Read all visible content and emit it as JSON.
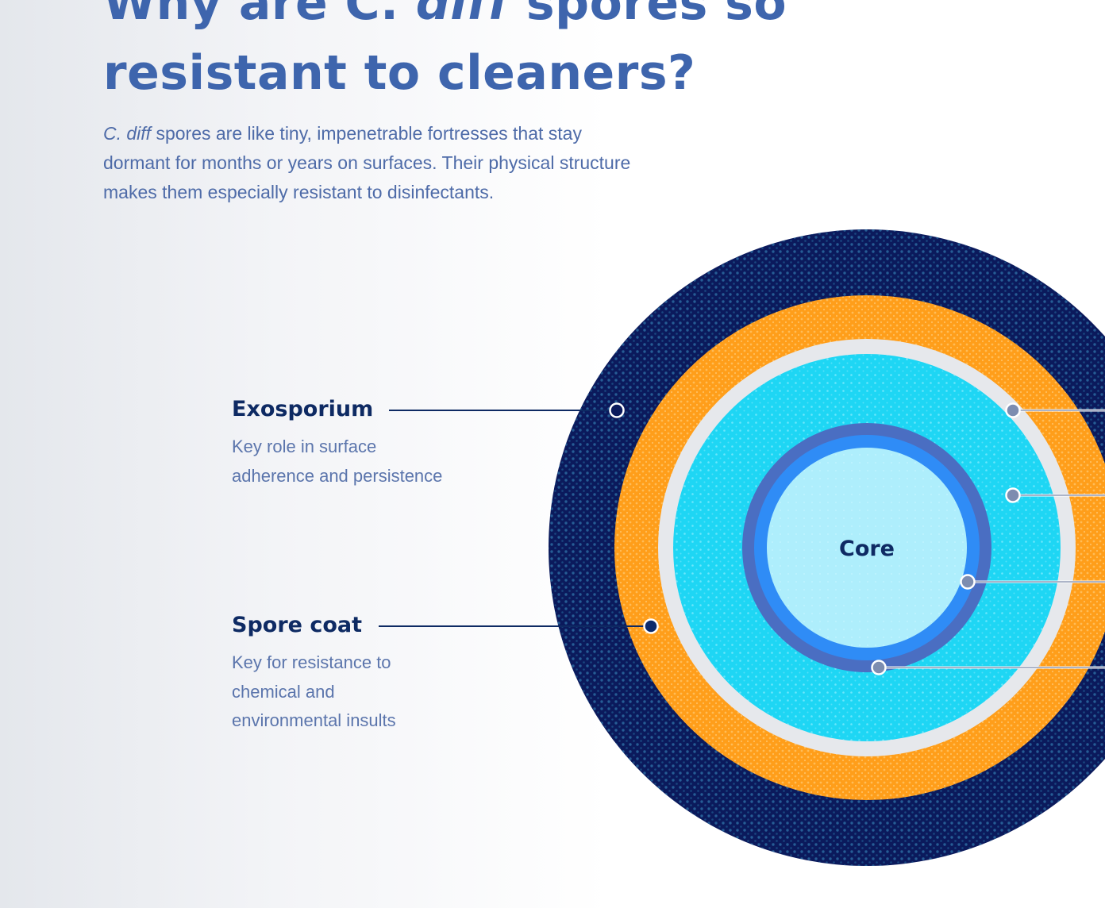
{
  "header": {
    "title_part1": "Why are C. ",
    "title_italic": "diff",
    "title_part2": " spores so",
    "title_line2": "resistant to cleaners?"
  },
  "intro": {
    "italic": "C. diff",
    "text_line1": " spores are like tiny, impenetrable fortresses that stay",
    "text_line2": "dormant for months or years on surfaces. Their physical structure",
    "text_line3": "makes them especially resistant to disinfectants."
  },
  "labels": {
    "exosporium": {
      "title": "Exosporium",
      "desc_line1": "Key role in surface",
      "desc_line2": "adherence and persistence"
    },
    "spore_coat": {
      "title": "Spore coat",
      "desc_line1": "Key for resistance to",
      "desc_line2": "chemical and",
      "desc_line3": "environmental insults"
    }
  },
  "diagram": {
    "core_label": "Core"
  },
  "colors": {
    "exosporium": "#0b1a5c",
    "spore_coat": "#ff9e1a",
    "outer_membrane": "#e6e8ec",
    "cortex": "#1ed6f4",
    "germ_cell_wall": "#4a6ec2",
    "inner_membrane": "#2f8cf6",
    "core": "#aeeefc",
    "core_text": "#0e2a63",
    "leader_line": "#0e2a63",
    "accent_text": "#3e65ad"
  }
}
